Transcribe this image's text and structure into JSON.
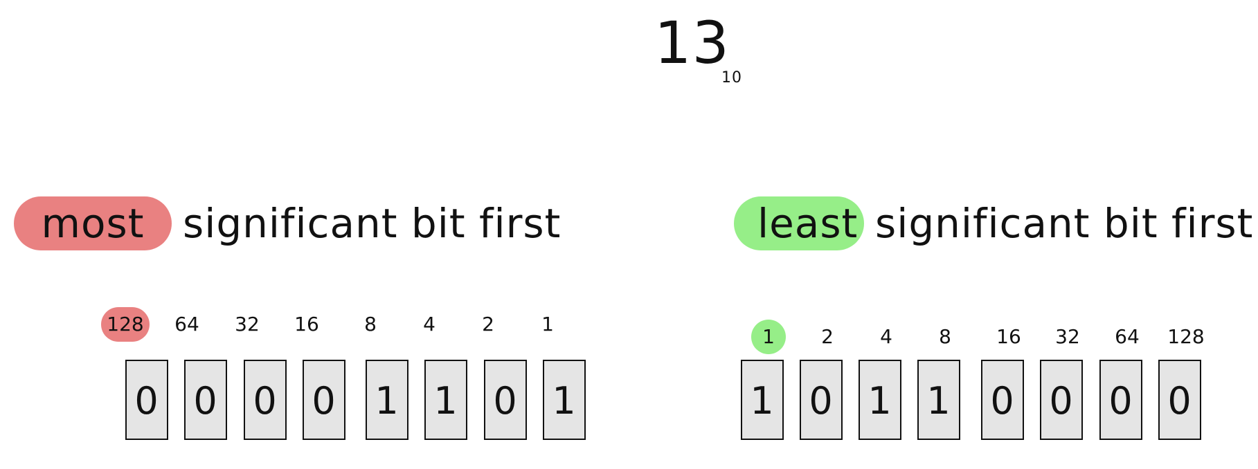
{
  "title": {
    "value": "13",
    "base": "10"
  },
  "colors": {
    "msb_highlight": "#e98181",
    "lsb_highlight": "#96ee88",
    "bit_box_fill": "#e5e5e5",
    "ink": "#111111"
  },
  "msb": {
    "highlight": "most",
    "rest": "significant bit first",
    "weights": [
      "128",
      "64",
      "32",
      "16",
      "8",
      "4",
      "2",
      "1"
    ],
    "highlighted_weight": "128",
    "bits": [
      "0",
      "0",
      "0",
      "0",
      "1",
      "1",
      "0",
      "1"
    ]
  },
  "lsb": {
    "highlight": "least",
    "rest": "significant bit first",
    "weights": [
      "1",
      "2",
      "4",
      "8",
      "16",
      "32",
      "64",
      "128"
    ],
    "highlighted_weight": "1",
    "bits": [
      "1",
      "0",
      "1",
      "1",
      "0",
      "0",
      "0",
      "0"
    ]
  }
}
